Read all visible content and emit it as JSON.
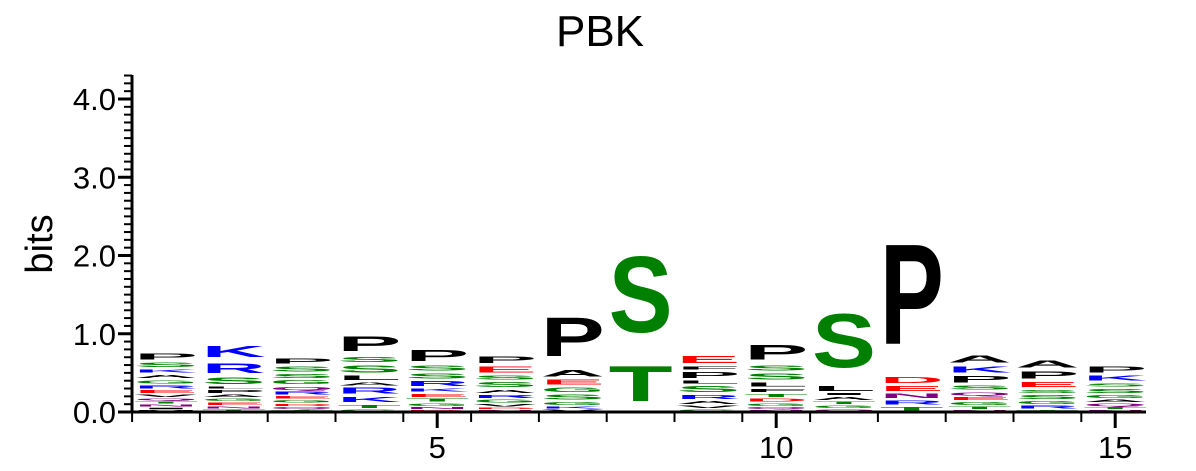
{
  "chart_data": {
    "type": "sequence-logo",
    "title": "PBK",
    "ylabel": "bits",
    "xlabel": "",
    "ylim": [
      0,
      4.3
    ],
    "y_ticks": [
      "0.0",
      "1.0",
      "2.0",
      "3.0",
      "4.0"
    ],
    "x_range": [
      1,
      15
    ],
    "x_ticks": [
      "5",
      "10",
      "15"
    ],
    "colors": {
      "black": "#000000",
      "blue": "#0000ff",
      "green": "#008000",
      "red": "#ff0000",
      "purple": "#800080"
    },
    "residue_colors": {
      "P": "black",
      "A": "black",
      "L": "black",
      "F": "black",
      "V": "black",
      "I": "black",
      "M": "black",
      "W": "black",
      "K": "blue",
      "R": "blue",
      "H": "blue",
      "S": "green",
      "T": "green",
      "G": "green",
      "Y": "green",
      "C": "green",
      "E": "red",
      "D": "red",
      "Q": "purple",
      "N": "purple"
    },
    "positions": [
      {
        "pos": 1,
        "letters": [
          {
            "aa": "M",
            "bits": 0.03
          },
          {
            "aa": "I",
            "bits": 0.03
          },
          {
            "aa": "N",
            "bits": 0.04
          },
          {
            "aa": "T",
            "bits": 0.04
          },
          {
            "aa": "Q",
            "bits": 0.04
          },
          {
            "aa": "V",
            "bits": 0.05
          },
          {
            "aa": "E",
            "bits": 0.06
          },
          {
            "aa": "R",
            "bits": 0.06
          },
          {
            "aa": "G",
            "bits": 0.07
          },
          {
            "aa": "A",
            "bits": 0.07
          },
          {
            "aa": "K",
            "bits": 0.07
          },
          {
            "aa": "S",
            "bits": 0.09
          },
          {
            "aa": "P",
            "bits": 0.12
          }
        ]
      },
      {
        "pos": 2,
        "letters": [
          {
            "aa": "T",
            "bits": 0.04
          },
          {
            "aa": "N",
            "bits": 0.04
          },
          {
            "aa": "E",
            "bits": 0.05
          },
          {
            "aa": "G",
            "bits": 0.05
          },
          {
            "aa": "A",
            "bits": 0.05
          },
          {
            "aa": "P",
            "bits": 0.06
          },
          {
            "aa": "L",
            "bits": 0.04
          },
          {
            "aa": "S",
            "bits": 0.13
          },
          {
            "aa": "R",
            "bits": 0.2
          },
          {
            "aa": "K",
            "bits": 0.22
          }
        ]
      },
      {
        "pos": 3,
        "letters": [
          {
            "aa": "T",
            "bits": 0.03
          },
          {
            "aa": "Q",
            "bits": 0.04
          },
          {
            "aa": "D",
            "bits": 0.04
          },
          {
            "aa": "G",
            "bits": 0.05
          },
          {
            "aa": "E",
            "bits": 0.05
          },
          {
            "aa": "R",
            "bits": 0.06
          },
          {
            "aa": "Q",
            "bits": 0.07
          },
          {
            "aa": "G",
            "bits": 0.08
          },
          {
            "aa": "S",
            "bits": 0.08
          },
          {
            "aa": "S",
            "bits": 0.1
          },
          {
            "aa": "P",
            "bits": 0.1
          }
        ]
      },
      {
        "pos": 4,
        "letters": [
          {
            "aa": "G",
            "bits": 0.04
          },
          {
            "aa": "T",
            "bits": 0.07
          },
          {
            "aa": "K",
            "bits": 0.1
          },
          {
            "aa": "R",
            "bits": 0.12
          },
          {
            "aa": "A",
            "bits": 0.06
          },
          {
            "aa": "L",
            "bits": 0.09
          },
          {
            "aa": "S",
            "bits": 0.14
          },
          {
            "aa": "S",
            "bits": 0.1
          },
          {
            "aa": "P",
            "bits": 0.3
          }
        ]
      },
      {
        "pos": 5,
        "letters": [
          {
            "aa": "D",
            "bits": 0.03
          },
          {
            "aa": "N",
            "bits": 0.04
          },
          {
            "aa": "G",
            "bits": 0.05
          },
          {
            "aa": "T",
            "bits": 0.06
          },
          {
            "aa": "E",
            "bits": 0.07
          },
          {
            "aa": "K",
            "bits": 0.06
          },
          {
            "aa": "R",
            "bits": 0.1
          },
          {
            "aa": "S",
            "bits": 0.1
          },
          {
            "aa": "S",
            "bits": 0.1
          },
          {
            "aa": "P",
            "bits": 0.22
          }
        ]
      },
      {
        "pos": 6,
        "letters": [
          {
            "aa": "N",
            "bits": 0.03
          },
          {
            "aa": "D",
            "bits": 0.03
          },
          {
            "aa": "V",
            "bits": 0.05
          },
          {
            "aa": "G",
            "bits": 0.06
          },
          {
            "aa": "R",
            "bits": 0.06
          },
          {
            "aa": "A",
            "bits": 0.07
          },
          {
            "aa": "S",
            "bits": 0.1
          },
          {
            "aa": "S",
            "bits": 0.08
          },
          {
            "aa": "E",
            "bits": 0.12
          },
          {
            "aa": "P",
            "bits": 0.13
          }
        ]
      },
      {
        "pos": 7,
        "letters": [
          {
            "aa": "V",
            "bits": 0.04
          },
          {
            "aa": "K",
            "bits": 0.04
          },
          {
            "aa": "G",
            "bits": 0.06
          },
          {
            "aa": "S",
            "bits": 0.1
          },
          {
            "aa": "G",
            "bits": 0.09
          },
          {
            "aa": "E",
            "bits": 0.1
          },
          {
            "aa": "A",
            "bits": 0.13
          },
          {
            "aa": "P",
            "bits": 0.79
          }
        ]
      },
      {
        "pos": 8,
        "letters": [
          {
            "aa": "T",
            "bits": 0.72
          },
          {
            "aa": "S",
            "bits": 1.55
          }
        ]
      },
      {
        "pos": 9,
        "letters": [
          {
            "aa": "G",
            "bits": 0.04
          },
          {
            "aa": "V",
            "bits": 0.05
          },
          {
            "aa": "A",
            "bits": 0.06
          },
          {
            "aa": "R",
            "bits": 0.08
          },
          {
            "aa": "S",
            "bits": 0.12
          },
          {
            "aa": "L",
            "bits": 0.06
          },
          {
            "aa": "P",
            "bits": 0.12
          },
          {
            "aa": "F",
            "bits": 0.07
          },
          {
            "aa": "E",
            "bits": 0.14
          }
        ]
      },
      {
        "pos": 10,
        "letters": [
          {
            "aa": "N",
            "bits": 0.03
          },
          {
            "aa": "Q",
            "bits": 0.04
          },
          {
            "aa": "G",
            "bits": 0.05
          },
          {
            "aa": "D",
            "bits": 0.06
          },
          {
            "aa": "T",
            "bits": 0.06
          },
          {
            "aa": "F",
            "bits": 0.07
          },
          {
            "aa": "L",
            "bits": 0.08
          },
          {
            "aa": "S",
            "bits": 0.12
          },
          {
            "aa": "S",
            "bits": 0.1
          },
          {
            "aa": "P",
            "bits": 0.3
          }
        ]
      },
      {
        "pos": 11,
        "letters": [
          {
            "aa": "Q",
            "bits": 0.04
          },
          {
            "aa": "G",
            "bits": 0.05
          },
          {
            "aa": "T",
            "bits": 0.05
          },
          {
            "aa": "A",
            "bits": 0.07
          },
          {
            "aa": "I",
            "bits": 0.04
          },
          {
            "aa": "L",
            "bits": 0.1
          },
          {
            "aa": "S",
            "bits": 1.1
          }
        ]
      },
      {
        "pos": 12,
        "letters": [
          {
            "aa": "T",
            "bits": 0.08
          },
          {
            "aa": "R",
            "bits": 0.08
          },
          {
            "aa": "N",
            "bits": 0.09
          },
          {
            "aa": "E",
            "bits": 0.1
          },
          {
            "aa": "D",
            "bits": 0.12
          },
          {
            "aa": "P",
            "bits": 2.05
          }
        ]
      },
      {
        "pos": 13,
        "letters": [
          {
            "aa": "N",
            "bits": 0.03
          },
          {
            "aa": "T",
            "bits": 0.05
          },
          {
            "aa": "G",
            "bits": 0.06
          },
          {
            "aa": "E",
            "bits": 0.06
          },
          {
            "aa": "Q",
            "bits": 0.07
          },
          {
            "aa": "S",
            "bits": 0.08
          },
          {
            "aa": "P",
            "bits": 0.13
          },
          {
            "aa": "K",
            "bits": 0.12
          },
          {
            "aa": "A",
            "bits": 0.15
          }
        ]
      },
      {
        "pos": 14,
        "letters": [
          {
            "aa": "T",
            "bits": 0.03
          },
          {
            "aa": "R",
            "bits": 0.06
          },
          {
            "aa": "G",
            "bits": 0.06
          },
          {
            "aa": "S",
            "bits": 0.08
          },
          {
            "aa": "S",
            "bits": 0.07
          },
          {
            "aa": "E",
            "bits": 0.1
          },
          {
            "aa": "P",
            "bits": 0.14
          },
          {
            "aa": "A",
            "bits": 0.14
          }
        ]
      },
      {
        "pos": 15,
        "letters": [
          {
            "aa": "N",
            "bits": 0.03
          },
          {
            "aa": "T",
            "bits": 0.04
          },
          {
            "aa": "Q",
            "bits": 0.05
          },
          {
            "aa": "A",
            "bits": 0.05
          },
          {
            "aa": "G",
            "bits": 0.06
          },
          {
            "aa": "S",
            "bits": 0.08
          },
          {
            "aa": "S",
            "bits": 0.07
          },
          {
            "aa": "K",
            "bits": 0.1
          },
          {
            "aa": "P",
            "bits": 0.12
          }
        ]
      }
    ]
  }
}
